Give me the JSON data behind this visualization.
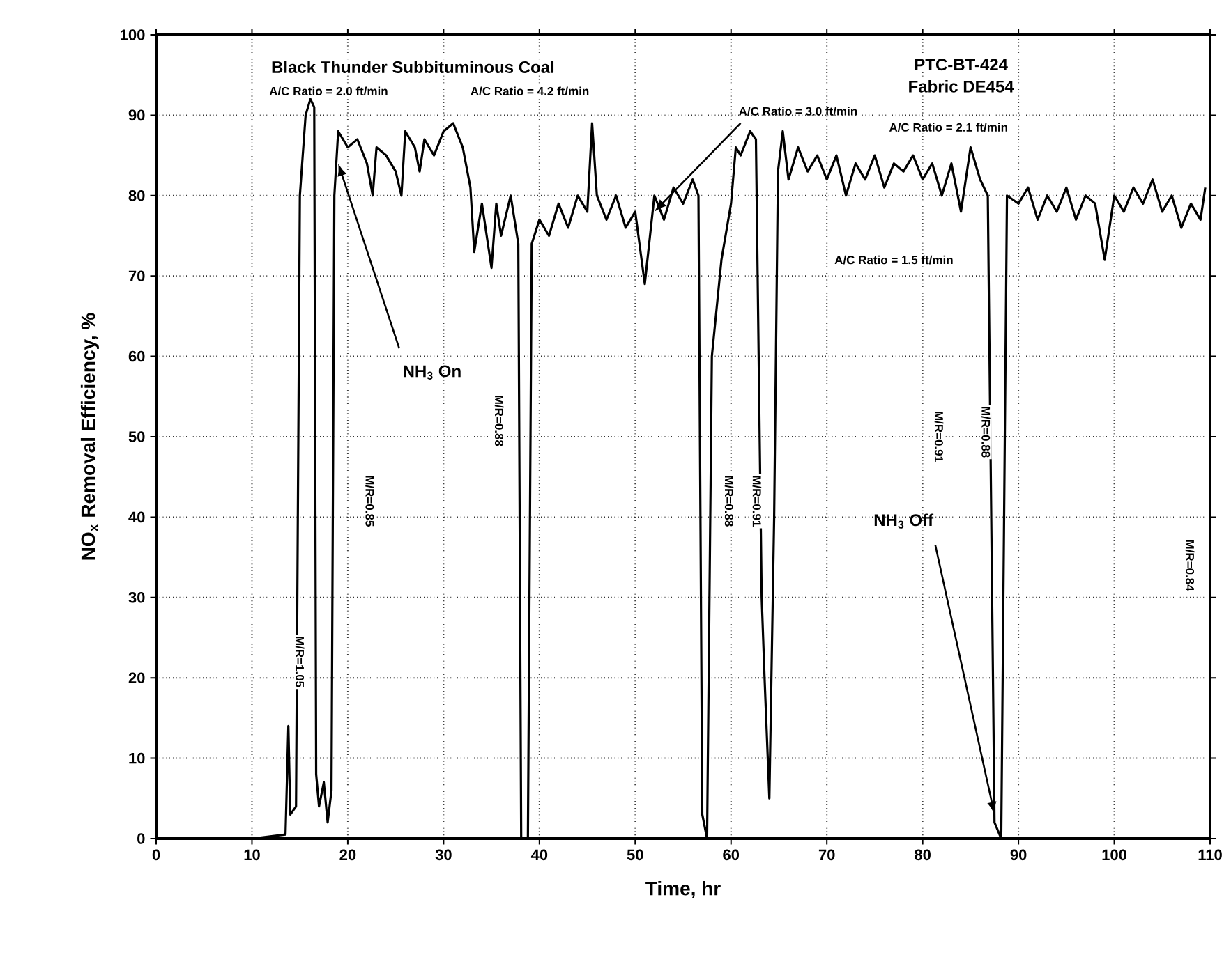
{
  "chart_data": {
    "type": "line",
    "xlabel": "Time, hr",
    "ylabel": "NO$_{x}$ Removal Efficiency, %",
    "x": [
      0,
      5,
      10,
      13.5,
      13.8,
      14.0,
      14.6,
      15.0,
      15.6,
      16.1,
      16.5,
      16.7,
      17.0,
      17.5,
      17.9,
      18.3,
      18.6,
      19.0,
      20,
      21,
      22,
      22.6,
      23,
      24,
      25,
      25.6,
      26,
      27,
      27.5,
      28,
      29,
      30,
      31,
      32,
      32.8,
      33.2,
      34,
      35,
      35.5,
      36,
      37,
      37.8,
      38.1,
      38.8,
      39.2,
      40,
      41,
      42,
      43,
      44,
      45,
      45.5,
      46,
      47,
      48,
      49,
      50,
      51,
      52,
      53,
      54,
      55,
      56,
      56.6,
      57.0,
      57.5,
      58,
      59,
      60,
      60.5,
      61,
      62,
      62.6,
      63.2,
      63.5,
      64,
      64.5,
      64.9,
      65.4,
      66,
      67,
      68,
      69,
      70,
      71,
      72,
      73,
      74,
      75,
      76,
      77,
      78,
      79,
      80,
      81,
      82,
      83,
      84,
      85,
      86,
      86.8,
      87.5,
      88.2,
      88.8,
      90,
      91,
      92,
      93,
      94,
      95,
      96,
      97,
      98,
      99,
      100,
      101,
      102,
      103,
      104,
      105,
      106,
      107,
      108,
      109,
      109.5
    ],
    "series": [
      {
        "color": "#000000",
        "values": [
          0,
          0,
          0,
          0.5,
          14,
          3,
          4,
          80,
          90,
          92,
          91,
          8,
          4,
          7,
          2,
          6,
          80,
          88,
          86,
          87,
          84,
          80,
          86,
          85,
          83,
          80,
          88,
          86,
          83,
          87,
          85,
          88,
          89,
          86,
          81,
          73,
          79,
          71,
          79,
          75,
          80,
          74,
          0,
          0,
          74,
          77,
          75,
          79,
          76,
          80,
          78,
          89,
          80,
          77,
          80,
          76,
          78,
          69,
          80,
          77,
          81,
          79,
          82,
          80,
          3,
          0,
          60,
          72,
          79,
          86,
          85,
          88,
          87,
          30,
          20,
          5,
          40,
          83,
          88,
          82,
          86,
          83,
          85,
          82,
          85,
          80,
          84,
          82,
          85,
          81,
          84,
          83,
          85,
          82,
          84,
          80,
          84,
          78,
          86,
          82,
          80,
          2,
          0,
          80,
          79,
          81,
          77,
          80,
          78,
          81,
          77,
          80,
          79,
          72,
          80,
          78,
          81,
          79,
          82,
          78,
          80,
          76,
          79,
          77,
          81
        ]
      }
    ],
    "xlim": [
      0,
      110
    ],
    "ylim": [
      0,
      100
    ],
    "xticks": [
      0,
      10,
      20,
      30,
      40,
      50,
      60,
      70,
      80,
      90,
      100,
      110
    ],
    "yticks": [
      0,
      10,
      20,
      30,
      40,
      50,
      60,
      70,
      80,
      90,
      100
    ],
    "grid": true,
    "line_style": "solid",
    "marker": "none",
    "annotations": [
      "Black Thunder Subbituminous Coal",
      "A/C Ratio = 2.0 ft/min",
      "A/C Ratio = 4.2 ft/min",
      "PTC-BT-424",
      "Fabric DE454",
      {
        "text": "A/C Ratio = 3.0 ft/min",
        "x": 52,
        "y": 78
      },
      "A/C Ratio = 2.1 ft/min",
      "A/C Ratio = 1.5 ft/min",
      {
        "text": "NH$_{3}$ On",
        "x": 19,
        "y": 84
      },
      {
        "text": "NH$_{3}$ Off",
        "x": 87.5,
        "y": 3
      },
      {
        "text": "M/R=1.05",
        "x": 15,
        "y": 22
      },
      "M/R=0.85",
      "M/R=0.88",
      "M/R=0.88",
      {
        "text": "M/R=0.91",
        "x": 62.7,
        "y": 42
      },
      "M/R=0.91",
      {
        "text": "M/R=0.88",
        "x": 86.6,
        "y": 50.6
      },
      "M/R=0.84"
    ]
  }
}
